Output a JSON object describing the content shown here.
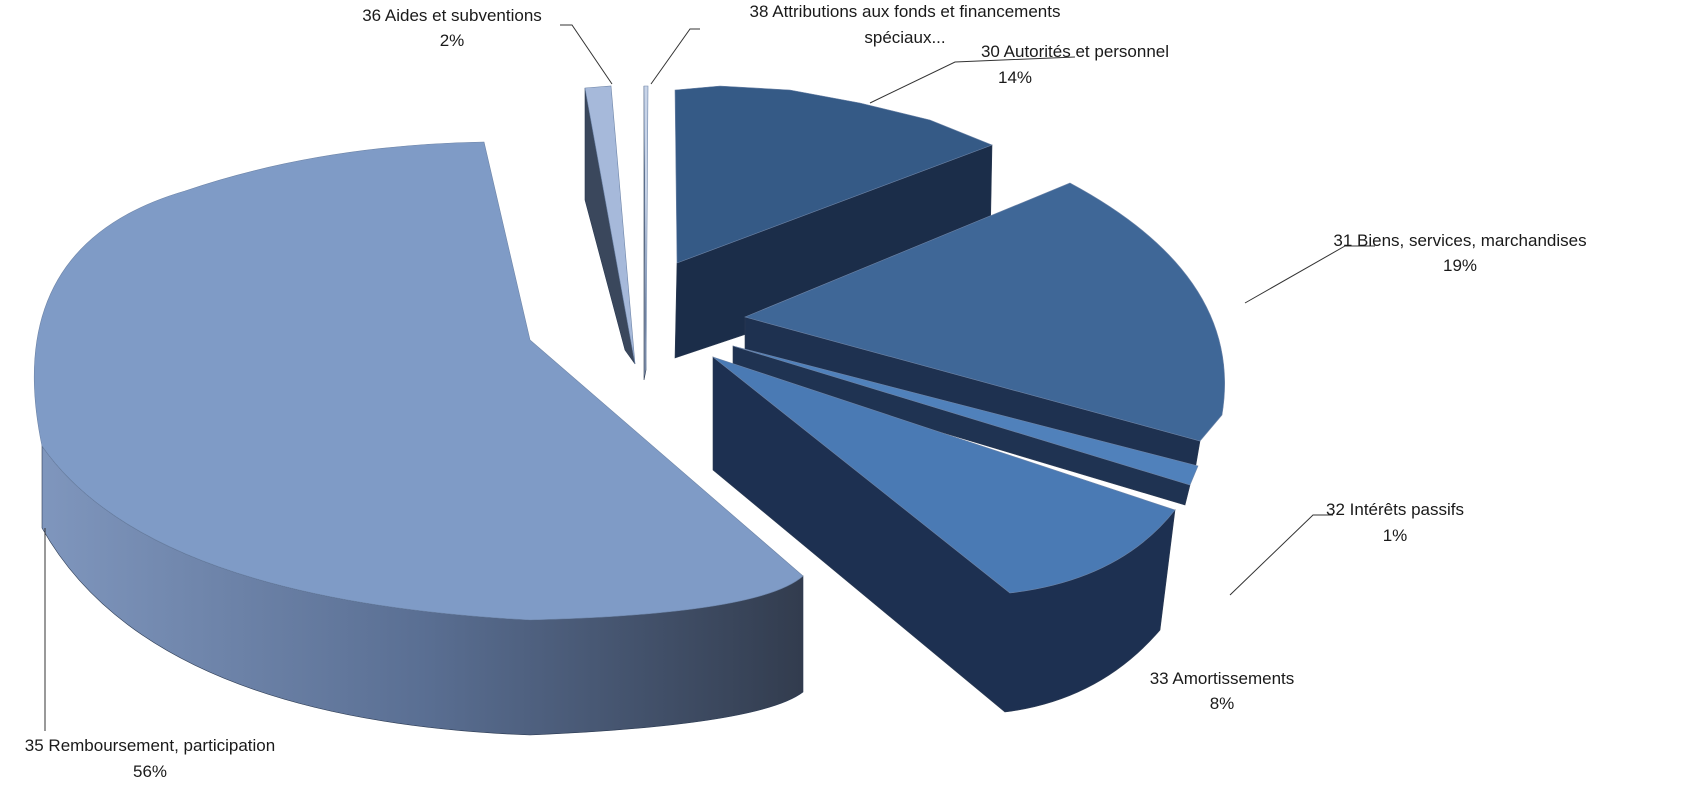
{
  "chart_data": {
    "type": "pie",
    "title": "",
    "style": "3d-exploded",
    "categories": [
      "30 Autorités et personnel",
      "31 Biens, services, marchandises",
      "32 Intérêts passifs",
      "33 Amortissements",
      "35 Remboursement, participation",
      "36 Aides et subventions",
      "38 Attributions aux fonds et financements spéciaux..."
    ],
    "values": [
      14,
      19,
      1,
      8,
      56,
      2,
      0.3
    ],
    "value_labels": [
      "14%",
      "19%",
      "1%",
      "8%",
      "56%",
      "2%",
      ""
    ],
    "label_lines": [
      [
        "30 Autorités et personnel",
        "14%"
      ],
      [
        "31 Biens, services, marchandises",
        "19%"
      ],
      [
        "32 Intérêts passifs",
        "1%"
      ],
      [
        "33 Amortissements",
        "8%"
      ],
      [
        "35 Remboursement, participation",
        "56%"
      ],
      [
        "36 Aides et subventions",
        "2%"
      ],
      [
        "38 Attributions aux fonds et financements",
        "spéciaux..."
      ]
    ],
    "colors": [
      "#355a86",
      "#3f6797",
      "#5081bb",
      "#4a7ab4",
      "#7f9bc6",
      "#a6b9da",
      "#c8d4e8"
    ]
  }
}
